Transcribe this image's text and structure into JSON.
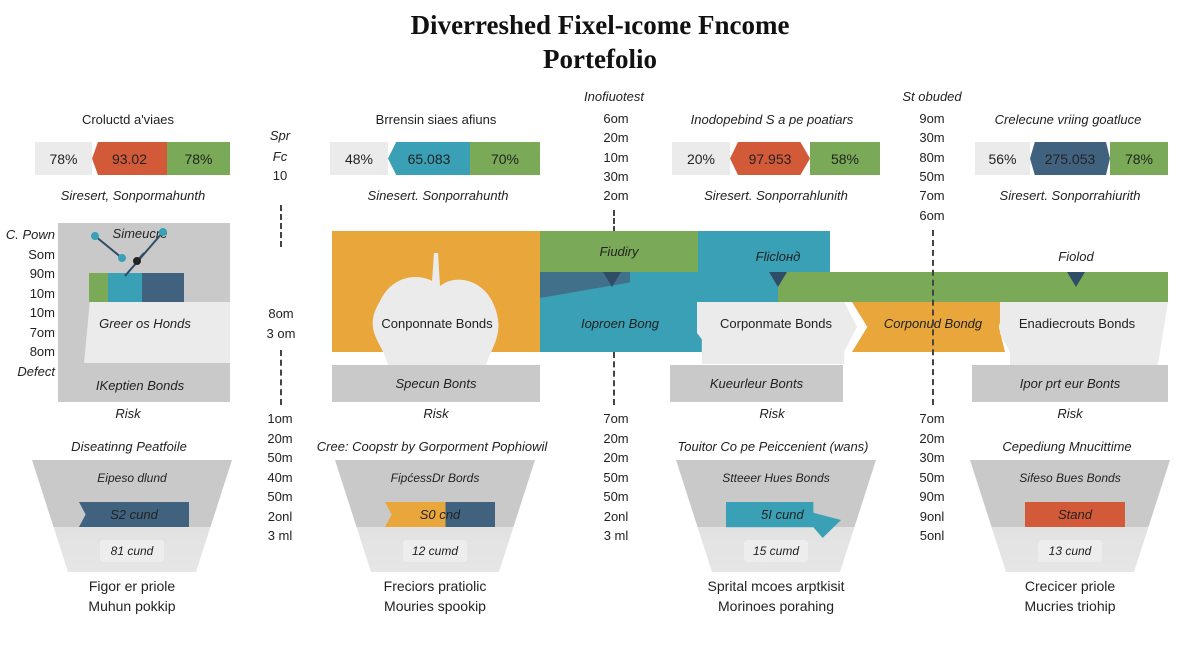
{
  "title": {
    "line1": "Diverreshed Fixel-ıcome Fncome",
    "line2": "Portefolio"
  },
  "colors": {
    "red": "#d35a38",
    "green": "#7aaa57",
    "teal": "#39a0b5",
    "navy": "#41627f",
    "orange": "#e8a63b",
    "grey": "#c9c9c9",
    "light": "#ebebeb"
  },
  "top": [
    {
      "heading": "Croluctd a'viaes",
      "left": "78%",
      "mid": "93.02",
      "right": "78%",
      "sub": "Siresert, Sonpormahunth"
    },
    {
      "heading": "Brrensin siaes afiuns",
      "left": "48%",
      "mid": "65.083",
      "right": "70%",
      "sub": "Sinesert. Sonporrahunth"
    },
    {
      "heading": "Inodopebind S a pe poatiars",
      "left": "20%",
      "mid": "97.953",
      "right": "58%",
      "sub": "Siresert. Sonporrahlunith"
    },
    {
      "heading": "Crelecune vriing goatluce",
      "left": "56%",
      "mid": "275.053",
      "right": "78%",
      "sub": "Siresert. Sonporrahiurith"
    }
  ],
  "axes": {
    "col1_top": [
      "Spr",
      "Fc",
      "10"
    ],
    "col1_mid": [
      "8om",
      "3 om"
    ],
    "col1_bottom": [
      "1om",
      "20m",
      "50m",
      "40m",
      "50m",
      "2onl",
      "3 ml"
    ],
    "col2_title": "Inofiuotest",
    "col2_top": [
      "6om",
      "20m",
      "10m",
      "30m",
      "2om"
    ],
    "col2_bottom": [
      "7om",
      "20m",
      "20m",
      "50m",
      "50m",
      "2onl",
      "3 ml"
    ],
    "col3_title": "St obuded",
    "col3_top": [
      "9om",
      "30m",
      "80m",
      "50m",
      "7om",
      "6om"
    ],
    "col3_bottom": [
      "7om",
      "20m",
      "30m",
      "50m",
      "90m",
      "9onl",
      "5onl"
    ],
    "left": [
      "C. Pown",
      "Som",
      "90m",
      "10m",
      "10m",
      "7om",
      "8om",
      "Defect"
    ]
  },
  "middle": {
    "panel1": {
      "title": "Simeucre",
      "band": "Greer os Honds",
      "base": "IKeptien Bonds",
      "risk": "Risk"
    },
    "apple": "Conponnate Bonds",
    "specun": "Specun Bonts",
    "risk2": "Risk",
    "fiudiry": "Fiudiry",
    "flicloнд": "Flicloнд",
    "fiolod": "Fiolod",
    "teal_label": "Ioproen Bong",
    "chev1": "Corponmate Bonds",
    "chev2": "Corponud Bondg",
    "chev3": "Enadiecrouts Bonds",
    "base3": "Kueurleur Bonts",
    "risk3": "Risk",
    "base4": "Ipor prt eur Bonts",
    "risk4": "Risk"
  },
  "bottom": [
    {
      "heading": "Diseatinng Peatfoile",
      "top": "Eipeso dlund",
      "bar": "S2 cund",
      "inner": "81 cund",
      "cap1": "Figor er priole",
      "cap2": "Muhun pokkip"
    },
    {
      "heading": "Cree: Coopstr by Gorporment Pophiowil",
      "top": "FipćessDr Bords",
      "bar": "S0 cnd",
      "inner": "12 cumd",
      "cap1": "Freciors pratiolic",
      "cap2": "Mouries spookip"
    },
    {
      "heading": "Touitor Co pe Peiccenient (wans)",
      "top": "Stteeer Hues Bonds",
      "bar": "5I cund",
      "inner": "15 cumd",
      "cap1": "Sprital mcoes arptkisit",
      "cap2": "Morinoes porahing"
    },
    {
      "heading": "Cepediung Mnucittime",
      "top": "Sifeso Bues Bonds",
      "bar": "Stand",
      "inner": "13 cund",
      "cap1": "Crecicer priole",
      "cap2": "Mucries triohip"
    }
  ]
}
